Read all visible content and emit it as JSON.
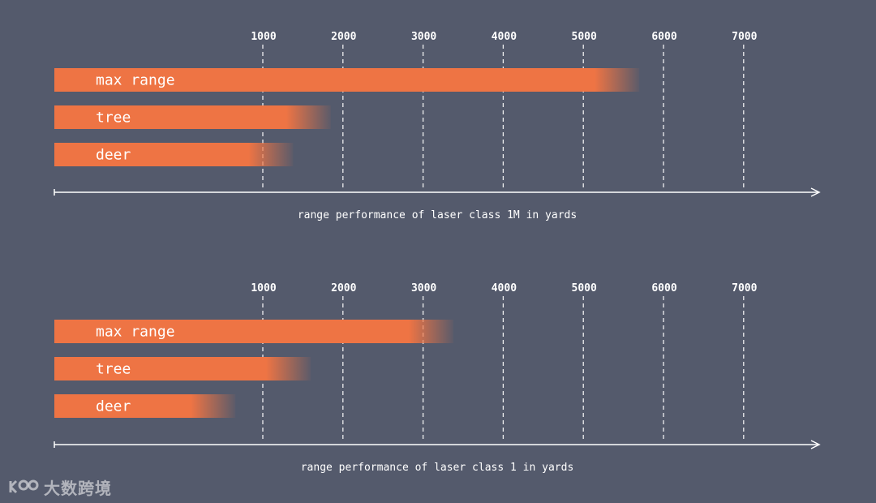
{
  "colors": {
    "background": "#545a6c",
    "bar": "#ee7444",
    "text": "#ffffff"
  },
  "watermark": {
    "text": "大数跨境"
  },
  "chart_data": [
    {
      "type": "bar",
      "orientation": "horizontal",
      "categories": [
        "max range",
        "tree",
        "deer"
      ],
      "values": [
        7300,
        3450,
        2980
      ],
      "title": "range performance of laser class 1M in yards",
      "xlim": [
        0,
        8000
      ],
      "ticks": [
        "1000",
        "2000",
        "3000",
        "4000",
        "5000",
        "6000",
        "7000"
      ],
      "grid": true
    },
    {
      "type": "bar",
      "orientation": "horizontal",
      "categories": [
        "max range",
        "tree",
        "deer"
      ],
      "values": [
        4980,
        3200,
        2260
      ],
      "title": "range performance of laser class 1 in yards",
      "xlim": [
        0,
        8000
      ],
      "ticks": [
        "1000",
        "2000",
        "3000",
        "4000",
        "5000",
        "6000",
        "7000"
      ],
      "grid": true
    }
  ]
}
